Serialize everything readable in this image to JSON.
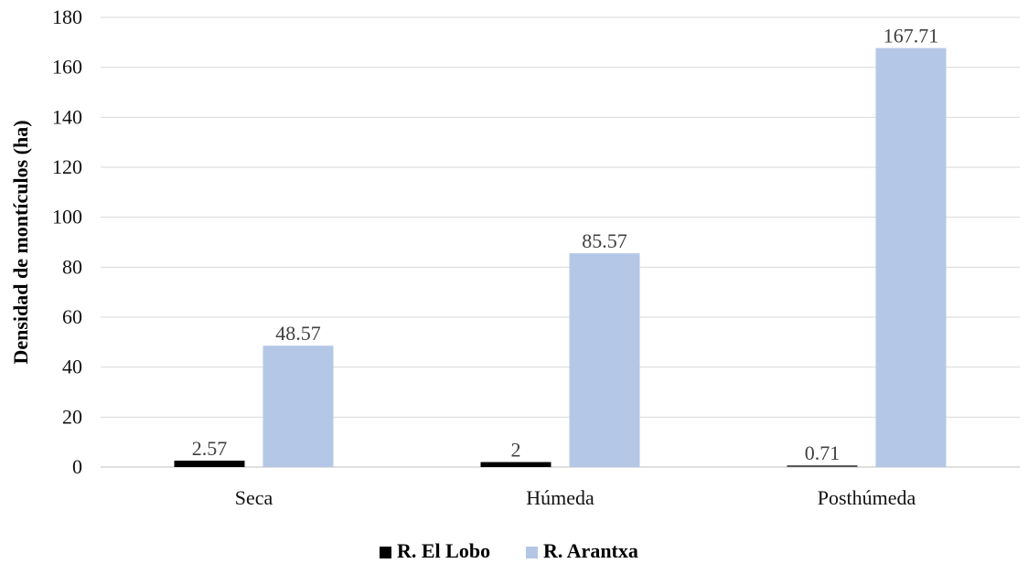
{
  "chart_data": {
    "type": "bar",
    "title": "",
    "xlabel": "",
    "ylabel": "Densidad de montículos (ha)",
    "ylim": [
      0,
      180
    ],
    "yticks": [
      0,
      20,
      40,
      60,
      80,
      100,
      120,
      140,
      160,
      180
    ],
    "categories": [
      "Seca",
      "Húmeda",
      "Posthúmeda"
    ],
    "series": [
      {
        "name": "R. El Lobo",
        "color": "#000000",
        "values": [
          2.57,
          2,
          0.71
        ],
        "labels": [
          "2.57",
          "2",
          "0.71"
        ]
      },
      {
        "name": "R. Arantxa",
        "color": "#b4c7e7",
        "values": [
          48.57,
          85.57,
          167.71
        ],
        "labels": [
          "48.57",
          "85.57",
          "167.71"
        ]
      }
    ],
    "grid": true,
    "legend": "bottom-center"
  }
}
